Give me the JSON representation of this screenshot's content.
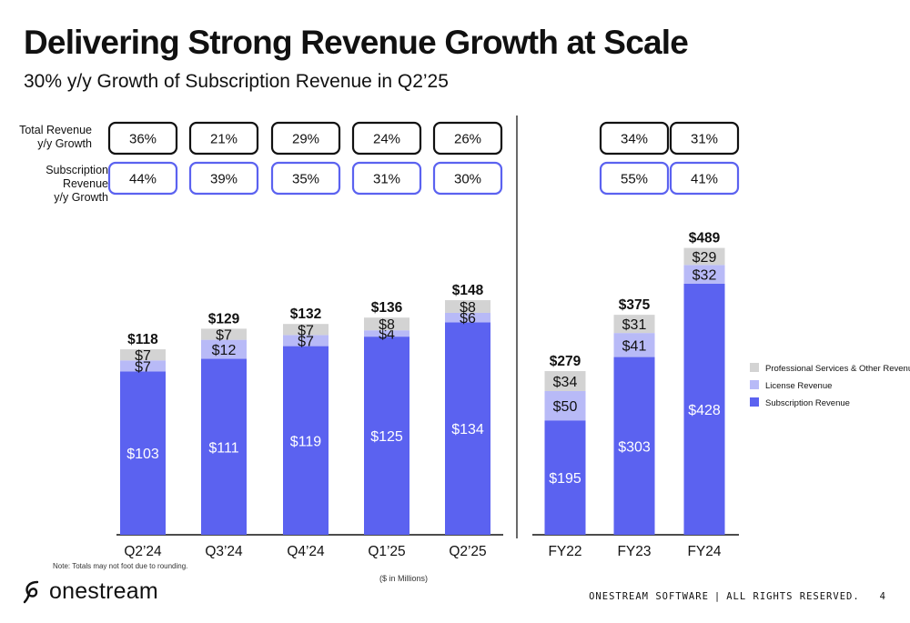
{
  "slide": {
    "title": "Delivering Strong Revenue Growth at Scale",
    "subtitle": "30% y/y Growth of Subscription Revenue in Q2’25",
    "note": "Note: Totals may not foot due to rounding.",
    "units": "($ in Millions)",
    "logo_text": "onestream",
    "footer_text": "ONESTREAM SOFTWARE",
    "footer_sep": "|",
    "footer_rights": "ALL RIGHTS RESERVED.",
    "page_number": "4"
  },
  "growth_rows": {
    "total": {
      "label_line1": "Total Revenue",
      "label_line2": "y/y Growth",
      "box_color": "#111111"
    },
    "subscription": {
      "label_line1": "Subscription Revenue",
      "label_line2": "y/y Growth",
      "box_color": "#5b62f0"
    }
  },
  "colors": {
    "subscription": "#5b62f0",
    "license": "#b8baf7",
    "professional": "#d3d3d3",
    "axis": "#111111",
    "divider": "#444444"
  },
  "chart_data": [
    {
      "type": "bar",
      "stacked": true,
      "categories": [
        "Q2’24",
        "Q3’24",
        "Q4’24",
        "Q1’25",
        "Q2’25"
      ],
      "series": [
        {
          "name": "Subscription Revenue",
          "key": "subscription",
          "values": [
            103,
            111,
            119,
            125,
            134
          ],
          "labels": [
            "$103",
            "$111",
            "$119",
            "$125",
            "$134"
          ]
        },
        {
          "name": "License Revenue",
          "key": "license",
          "values": [
            7,
            12,
            7,
            4,
            6
          ],
          "labels": [
            "$7",
            "$12",
            "$7",
            "$4",
            "$6"
          ]
        },
        {
          "name": "Professional Services & Other Revenue",
          "key": "professional",
          "values": [
            7,
            7,
            7,
            8,
            8
          ],
          "labels": [
            "$7",
            "$7",
            "$7",
            "$8",
            "$8"
          ]
        }
      ],
      "totals": [
        "$118",
        "$129",
        "$132",
        "$136",
        "$148"
      ],
      "total_growth": [
        "36%",
        "21%",
        "29%",
        "24%",
        "26%"
      ],
      "subscription_growth": [
        "44%",
        "39%",
        "35%",
        "31%",
        "30%"
      ],
      "ylim": [
        0,
        150
      ]
    },
    {
      "type": "bar",
      "stacked": true,
      "categories": [
        "FY22",
        "FY23",
        "FY24"
      ],
      "series": [
        {
          "name": "Subscription Revenue",
          "key": "subscription",
          "values": [
            195,
            303,
            428
          ],
          "labels": [
            "$195",
            "$303",
            "$428"
          ]
        },
        {
          "name": "License Revenue",
          "key": "license",
          "values": [
            50,
            41,
            32
          ],
          "labels": [
            "$50",
            "$41",
            "$32"
          ]
        },
        {
          "name": "Professional Services & Other Revenue",
          "key": "professional",
          "values": [
            34,
            31,
            29
          ],
          "labels": [
            "$34",
            "$31",
            "$29"
          ]
        }
      ],
      "totals": [
        "$279",
        "$375",
        "$489"
      ],
      "total_growth": [
        "",
        "34%",
        "31%"
      ],
      "subscription_growth": [
        "",
        "55%",
        "41%"
      ],
      "ylim": [
        0,
        500
      ]
    }
  ],
  "legend": {
    "position": "right",
    "items": [
      {
        "label": "Professional Services & Other Revenue",
        "key": "professional"
      },
      {
        "label": "License Revenue",
        "key": "license"
      },
      {
        "label": "Subscription Revenue",
        "key": "subscription"
      }
    ]
  }
}
